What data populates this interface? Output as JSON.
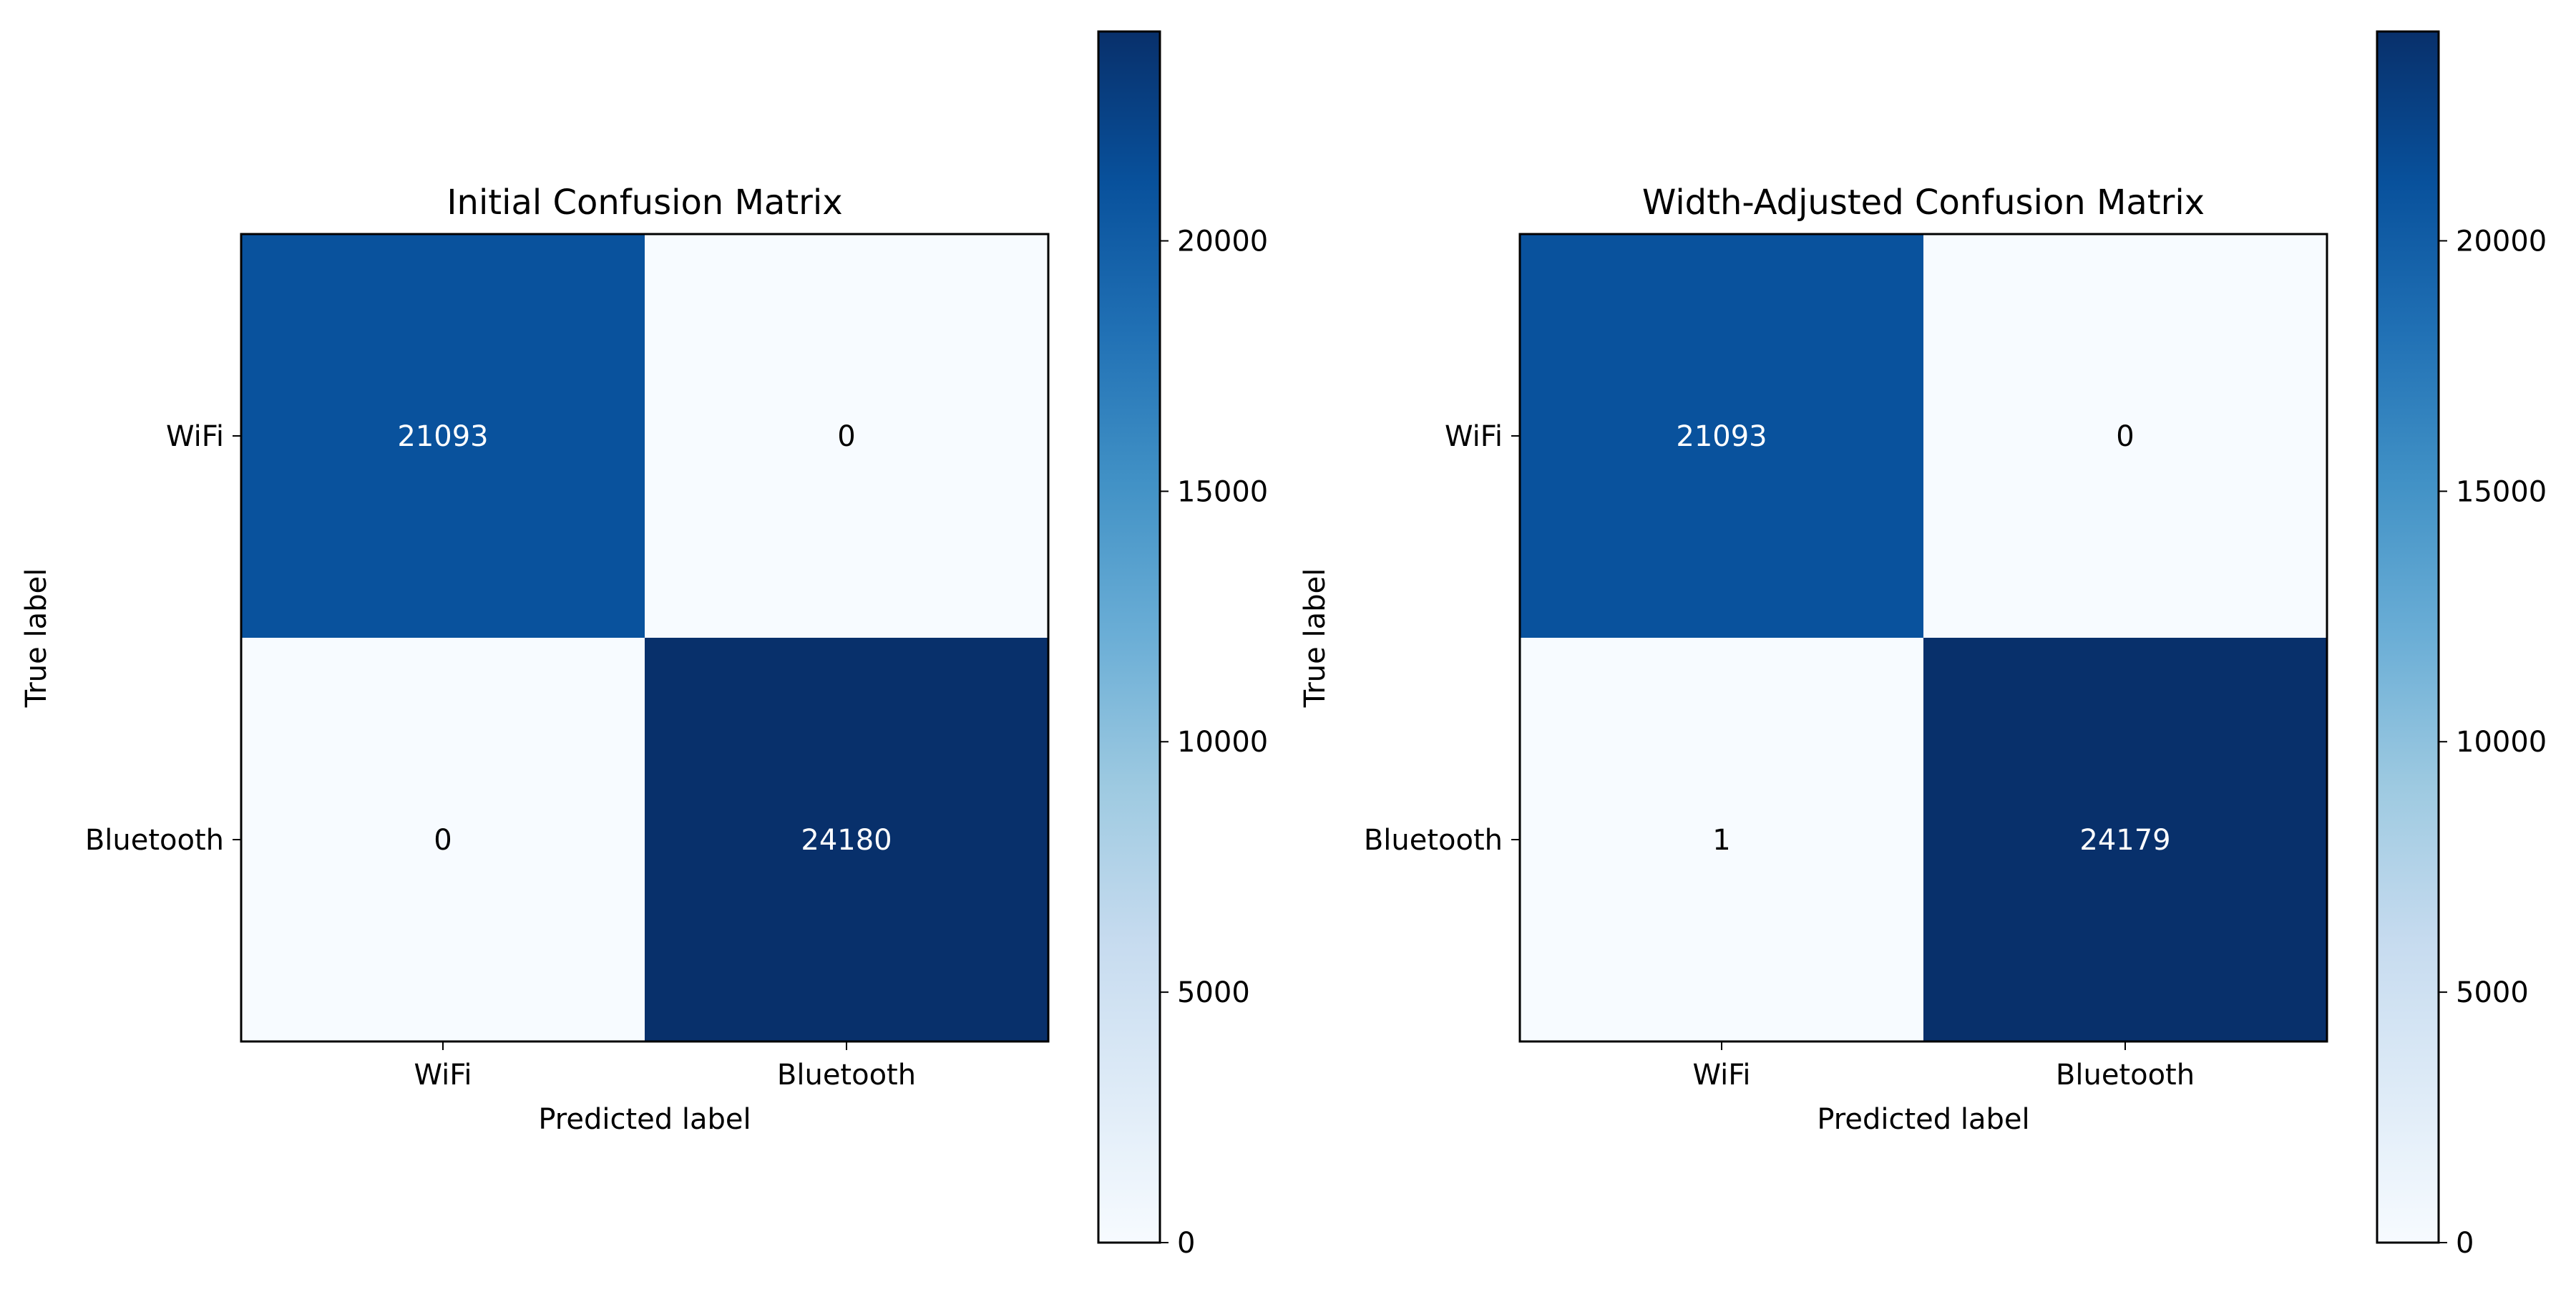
{
  "chart_data": [
    {
      "type": "heatmap",
      "title": "Initial Confusion Matrix",
      "xlabel": "Predicted label",
      "ylabel": "True label",
      "x_categories": [
        "WiFi",
        "Bluetooth"
      ],
      "y_categories": [
        "WiFi",
        "Bluetooth"
      ],
      "values": [
        [
          21093,
          0
        ],
        [
          0,
          24180
        ]
      ],
      "colormap": "Blues",
      "colorbar": {
        "min": 0,
        "max": 24180,
        "ticks": [
          0,
          5000,
          10000,
          15000,
          20000
        ]
      }
    },
    {
      "type": "heatmap",
      "title": "Width-Adjusted Confusion Matrix",
      "xlabel": "Predicted label",
      "ylabel": "True label",
      "x_categories": [
        "WiFi",
        "Bluetooth"
      ],
      "y_categories": [
        "WiFi",
        "Bluetooth"
      ],
      "values": [
        [
          21093,
          0
        ],
        [
          1,
          24179
        ]
      ],
      "colormap": "Blues",
      "colorbar": {
        "min": 0,
        "max": 24179,
        "ticks": [
          0,
          5000,
          10000,
          15000,
          20000
        ]
      }
    }
  ]
}
